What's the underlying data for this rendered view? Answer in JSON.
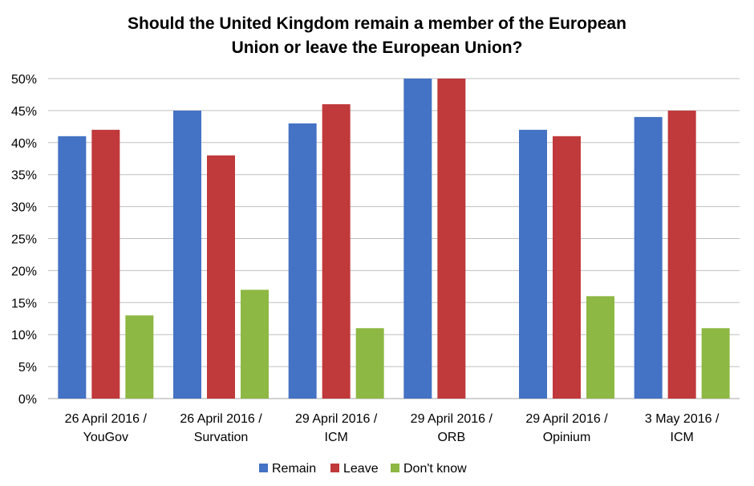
{
  "chart_data": {
    "type": "bar",
    "title_lines": [
      "Should the United Kingdom remain a member of the European",
      "Union or leave the European Union?"
    ],
    "categories": [
      [
        "26 April 2016 /",
        "YouGov"
      ],
      [
        "26 April 2016 /",
        "Survation"
      ],
      [
        "29 April 2016 /",
        "ICM"
      ],
      [
        "29 April 2016 /",
        "ORB"
      ],
      [
        "29 April 2016 /",
        "Opinium"
      ],
      [
        "3 May 2016 /",
        "ICM"
      ]
    ],
    "series": [
      {
        "name": "Remain",
        "color": "#4472C4",
        "values": [
          41,
          45,
          43,
          50,
          42,
          44
        ]
      },
      {
        "name": "Leave",
        "color": "#C0393B",
        "values": [
          42,
          38,
          46,
          50,
          41,
          45
        ]
      },
      {
        "name": "Don't know",
        "color": "#8DB843",
        "values": [
          13,
          17,
          11,
          0,
          16,
          11
        ]
      }
    ],
    "ylim": [
      0,
      50
    ],
    "yticks": [
      "0%",
      "5%",
      "10%",
      "15%",
      "20%",
      "25%",
      "30%",
      "35%",
      "40%",
      "45%",
      "50%"
    ],
    "grid": true,
    "legend_position": "bottom"
  }
}
